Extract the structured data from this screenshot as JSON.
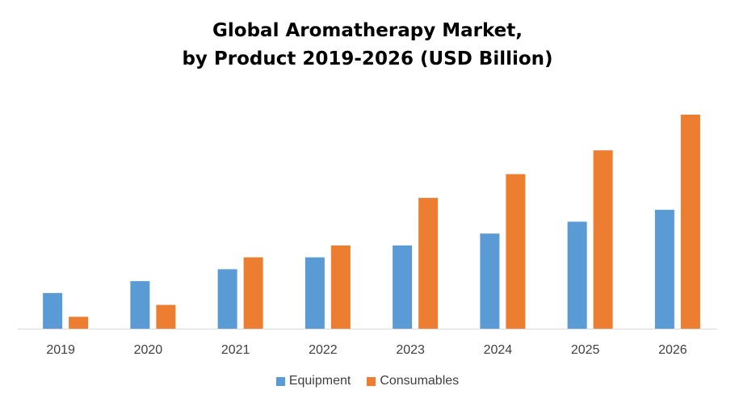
{
  "chart_data": {
    "type": "bar",
    "title_lines": [
      "Global Aromatherapy Market,",
      "by Product 2019-2026 (USD Billion)"
    ],
    "categories": [
      "2019",
      "2020",
      "2021",
      "2022",
      "2023",
      "2024",
      "2025",
      "2026"
    ],
    "series": [
      {
        "name": "Equipment",
        "color": "#5B9BD5",
        "values": [
          1.5,
          2.0,
          2.5,
          3.0,
          3.5,
          4.0,
          4.5,
          5.0
        ]
      },
      {
        "name": "Consumables",
        "color": "#ED7D31",
        "values": [
          0.5,
          1.0,
          3.0,
          3.5,
          5.5,
          6.5,
          7.5,
          9.0
        ]
      }
    ],
    "ylim": [
      0,
      9.0
    ],
    "grid": false,
    "legend": "bottom"
  }
}
